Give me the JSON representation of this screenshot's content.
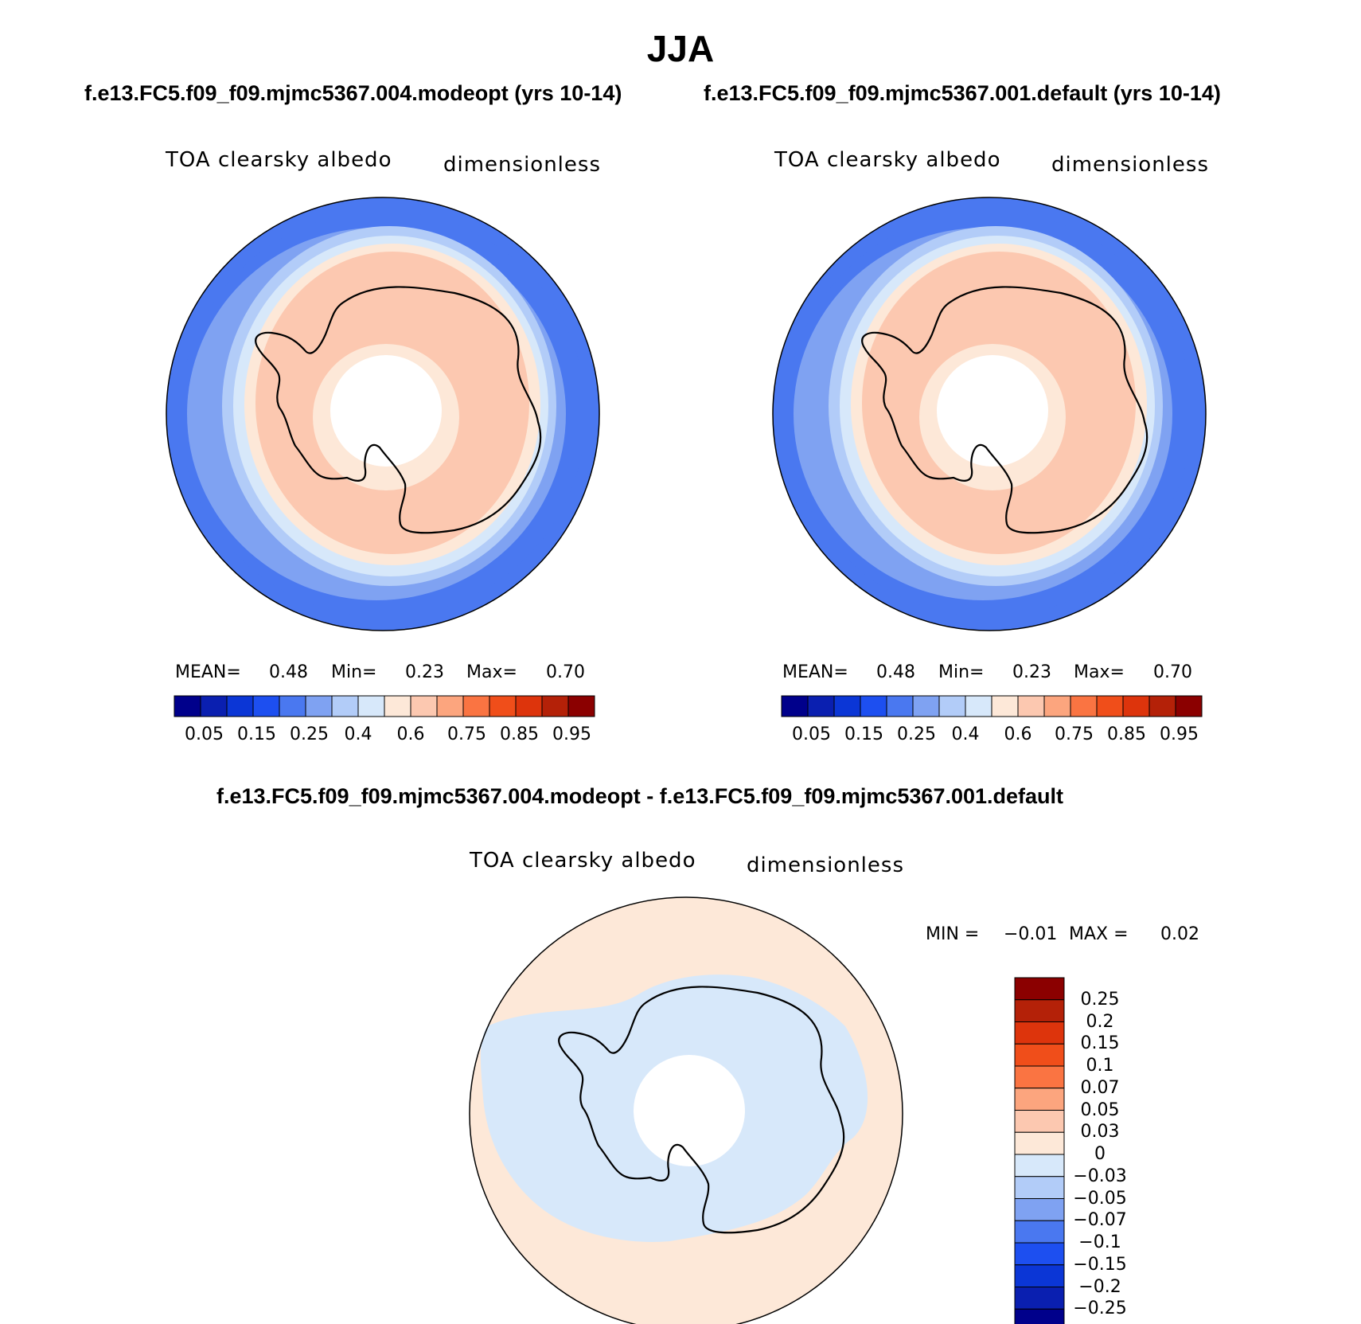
{
  "title": "JJA",
  "subtitle_left": "f.e13.FC5.f09_f09.mjmc5367.004.modeopt (yrs 10-14)",
  "subtitle_right": "f.e13.FC5.f09_f09.mjmc5367.001.default (yrs 10-14)",
  "diff_title": "f.e13.FC5.f09_f09.mjmc5367.004.modeopt - f.e13.FC5.f09_f09.mjmc5367.001.default",
  "panels": [
    {
      "variable": "TOA clearsky albedo",
      "units": "dimensionless",
      "mean_label": "MEAN=",
      "mean": "0.48",
      "min_label": "Min=",
      "min": "0.23",
      "max_label": "Max=",
      "max": "0.70"
    },
    {
      "variable": "TOA clearsky albedo",
      "units": "dimensionless",
      "mean_label": "MEAN=",
      "mean": "0.48",
      "min_label": "Min=",
      "min": "0.23",
      "max_label": "Max=",
      "max": "0.70"
    }
  ],
  "diff_panel": {
    "variable": "TOA clearsky albedo",
    "units": "dimensionless",
    "min_label": "MIN =",
    "min": "−0.01",
    "max_label": "MAX =",
    "max": "0.02"
  },
  "colorbar_main": {
    "colors": [
      "#00008b",
      "#0a1fb0",
      "#0b36d6",
      "#1d4ff0",
      "#4a78f0",
      "#7fa2f2",
      "#b2ccf8",
      "#d7e8fa",
      "#fde8d8",
      "#fcc8b0",
      "#fca57e",
      "#fa7442",
      "#f04e1a",
      "#dd340c",
      "#b42108",
      "#8b0000"
    ],
    "tick_labels": [
      "0.05",
      "0.15",
      "0.25",
      "0.4",
      "0.6",
      "0.75",
      "0.85",
      "0.95"
    ]
  },
  "colorbar_diff": {
    "colors": [
      "#8b0000",
      "#b42108",
      "#dd340c",
      "#f04e1a",
      "#fa7442",
      "#fca57e",
      "#fcc8b0",
      "#fde8d8",
      "#d7e8fa",
      "#b2ccf8",
      "#7fa2f2",
      "#4a78f0",
      "#1d4ff0",
      "#0b36d6",
      "#0a1fb0",
      "#00008b"
    ],
    "tick_labels": [
      "0.25",
      "0.2",
      "0.15",
      "0.1",
      "0.07",
      "0.05",
      "0.03",
      "0",
      "−0.03",
      "−0.05",
      "−0.07",
      "−0.1",
      "−0.15",
      "−0.2",
      "−0.25"
    ]
  }
}
